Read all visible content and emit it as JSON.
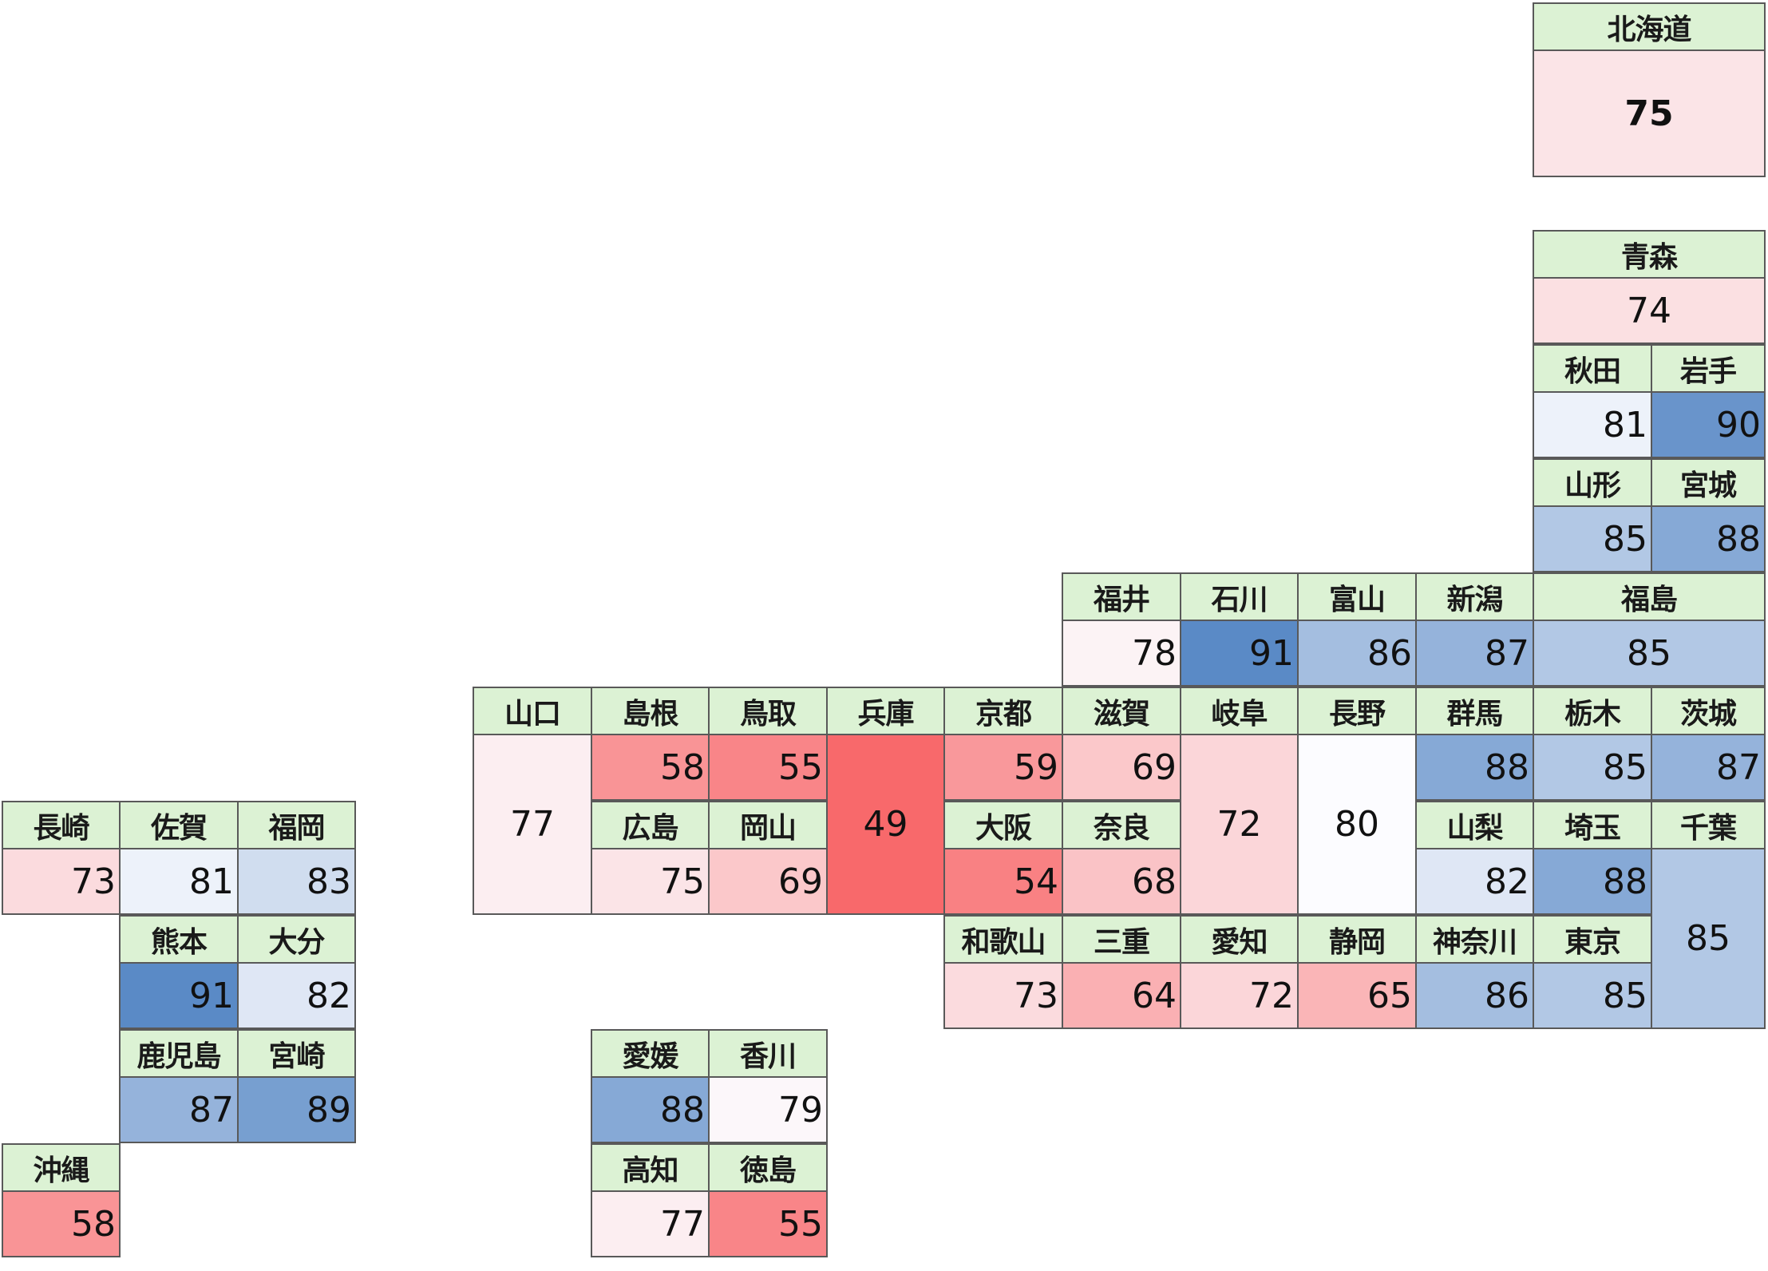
{
  "prefectures": [
    {
      "name": "北海道",
      "value": 75
    },
    {
      "name": "青森",
      "value": 74
    },
    {
      "name": "秋田",
      "value": 81
    },
    {
      "name": "岩手",
      "value": 90
    },
    {
      "name": "山形",
      "value": 85
    },
    {
      "name": "宮城",
      "value": 88
    },
    {
      "name": "福井",
      "value": 78
    },
    {
      "name": "石川",
      "value": 91
    },
    {
      "name": "富山",
      "value": 86
    },
    {
      "name": "新潟",
      "value": 87
    },
    {
      "name": "福島",
      "value": 85
    },
    {
      "name": "山口",
      "value": 77
    },
    {
      "name": "島根",
      "value": 58
    },
    {
      "name": "鳥取",
      "value": 55
    },
    {
      "name": "兵庫",
      "value": 49
    },
    {
      "name": "京都",
      "value": 59
    },
    {
      "name": "滋賀",
      "value": 69
    },
    {
      "name": "岐阜",
      "value": 72
    },
    {
      "name": "長野",
      "value": 80
    },
    {
      "name": "群馬",
      "value": 88
    },
    {
      "name": "栃木",
      "value": 85
    },
    {
      "name": "茨城",
      "value": 87
    },
    {
      "name": "広島",
      "value": 75
    },
    {
      "name": "岡山",
      "value": 69
    },
    {
      "name": "大阪",
      "value": 54
    },
    {
      "name": "奈良",
      "value": 68
    },
    {
      "name": "山梨",
      "value": 82
    },
    {
      "name": "埼玉",
      "value": 88
    },
    {
      "name": "千葉",
      "value": 85
    },
    {
      "name": "和歌山",
      "value": 73
    },
    {
      "name": "三重",
      "value": 64
    },
    {
      "name": "愛知",
      "value": 72
    },
    {
      "name": "静岡",
      "value": 65
    },
    {
      "name": "神奈川",
      "value": 86
    },
    {
      "name": "東京",
      "value": 85
    },
    {
      "name": "長崎",
      "value": 73
    },
    {
      "name": "佐賀",
      "value": 81
    },
    {
      "name": "福岡",
      "value": 83
    },
    {
      "name": "熊本",
      "value": 91
    },
    {
      "name": "大分",
      "value": 82
    },
    {
      "name": "鹿児島",
      "value": 87
    },
    {
      "name": "宮崎",
      "value": 89
    },
    {
      "name": "沖縄",
      "value": 58
    },
    {
      "name": "愛媛",
      "value": 88
    },
    {
      "name": "香川",
      "value": 79
    },
    {
      "name": "高知",
      "value": 77
    },
    {
      "name": "徳島",
      "value": 55
    }
  ],
  "color_scale": {
    "low_color": "#f8696b",
    "mid_color": "#fcfcff",
    "high_color": "#5a8ac6",
    "low_value": 49,
    "mid_value": 80,
    "high_value": 91
  }
}
